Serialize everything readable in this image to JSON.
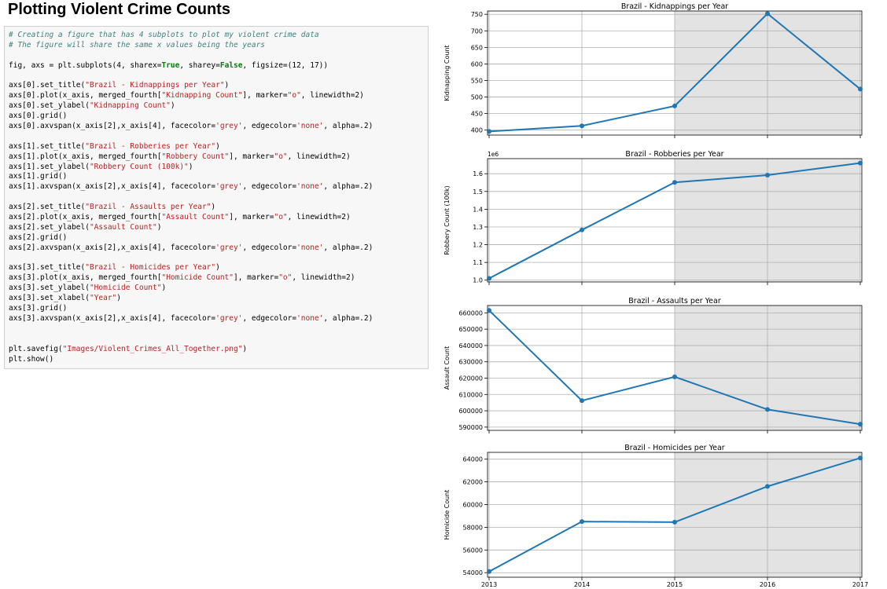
{
  "heading": "Plotting Violent Crime Counts",
  "code_lines": [
    [
      {
        "t": "# Creating a figure that has 4 subplots to plot my violent crime data",
        "c": "com"
      }
    ],
    [
      {
        "t": "# The figure will share the same x values being the years",
        "c": "com"
      }
    ],
    [],
    [
      {
        "t": "fig, axs = plt.subplots(4, sharex="
      },
      {
        "t": "True",
        "c": "kw"
      },
      {
        "t": ", sharey="
      },
      {
        "t": "False",
        "c": "kw"
      },
      {
        "t": ", figsize=(12, 17))"
      }
    ],
    [],
    [
      {
        "t": "axs[0].set_title("
      },
      {
        "t": "\"Brazil - Kidnappings per Year\"",
        "c": "str"
      },
      {
        "t": ")"
      }
    ],
    [
      {
        "t": "axs[0].plot(x_axis, merged_fourth["
      },
      {
        "t": "\"Kidnapping Count\"",
        "c": "str"
      },
      {
        "t": "], marker="
      },
      {
        "t": "\"o\"",
        "c": "str"
      },
      {
        "t": ", linewidth=2)"
      }
    ],
    [
      {
        "t": "axs[0].set_ylabel("
      },
      {
        "t": "\"Kidnapping Count\"",
        "c": "str"
      },
      {
        "t": ")"
      }
    ],
    [
      {
        "t": "axs[0].grid()"
      }
    ],
    [
      {
        "t": "axs[0].axvspan(x_axis[2],x_axis[4], facecolor="
      },
      {
        "t": "'grey'",
        "c": "str"
      },
      {
        "t": ", edgecolor="
      },
      {
        "t": "'none'",
        "c": "str"
      },
      {
        "t": ", alpha=.2)"
      }
    ],
    [],
    [
      {
        "t": "axs[1].set_title("
      },
      {
        "t": "\"Brazil - Robberies per Year\"",
        "c": "str"
      },
      {
        "t": ")"
      }
    ],
    [
      {
        "t": "axs[1].plot(x_axis, merged_fourth["
      },
      {
        "t": "\"Robbery Count\"",
        "c": "str"
      },
      {
        "t": "], marker="
      },
      {
        "t": "\"o\"",
        "c": "str"
      },
      {
        "t": ", linewidth=2)"
      }
    ],
    [
      {
        "t": "axs[1].set_ylabel("
      },
      {
        "t": "\"Robbery Count (100k)\"",
        "c": "str"
      },
      {
        "t": ")"
      }
    ],
    [
      {
        "t": "axs[1].grid()"
      }
    ],
    [
      {
        "t": "axs[1].axvspan(x_axis[2],x_axis[4], facecolor="
      },
      {
        "t": "'grey'",
        "c": "str"
      },
      {
        "t": ", edgecolor="
      },
      {
        "t": "'none'",
        "c": "str"
      },
      {
        "t": ", alpha=.2)"
      }
    ],
    [],
    [
      {
        "t": "axs[2].set_title("
      },
      {
        "t": "\"Brazil - Assaults per Year\"",
        "c": "str"
      },
      {
        "t": ")"
      }
    ],
    [
      {
        "t": "axs[2].plot(x_axis, merged_fourth["
      },
      {
        "t": "\"Assault Count\"",
        "c": "str"
      },
      {
        "t": "], marker="
      },
      {
        "t": "\"o\"",
        "c": "str"
      },
      {
        "t": ", linewidth=2)"
      }
    ],
    [
      {
        "t": "axs[2].set_ylabel("
      },
      {
        "t": "\"Assault Count\"",
        "c": "str"
      },
      {
        "t": ")"
      }
    ],
    [
      {
        "t": "axs[2].grid()"
      }
    ],
    [
      {
        "t": "axs[2].axvspan(x_axis[2],x_axis[4], facecolor="
      },
      {
        "t": "'grey'",
        "c": "str"
      },
      {
        "t": ", edgecolor="
      },
      {
        "t": "'none'",
        "c": "str"
      },
      {
        "t": ", alpha=.2)"
      }
    ],
    [],
    [
      {
        "t": "axs[3].set_title("
      },
      {
        "t": "\"Brazil - Homicides per Year\"",
        "c": "str"
      },
      {
        "t": ")"
      }
    ],
    [
      {
        "t": "axs[3].plot(x_axis, merged_fourth["
      },
      {
        "t": "\"Homicide Count\"",
        "c": "str"
      },
      {
        "t": "], marker="
      },
      {
        "t": "\"o\"",
        "c": "str"
      },
      {
        "t": ", linewidth=2)"
      }
    ],
    [
      {
        "t": "axs[3].set_ylabel("
      },
      {
        "t": "\"Homicide Count\"",
        "c": "str"
      },
      {
        "t": ")"
      }
    ],
    [
      {
        "t": "axs[3].set_xlabel("
      },
      {
        "t": "\"Year\"",
        "c": "str"
      },
      {
        "t": ")"
      }
    ],
    [
      {
        "t": "axs[3].grid()"
      }
    ],
    [
      {
        "t": "axs[3].axvspan(x_axis[2],x_axis[4], facecolor="
      },
      {
        "t": "'grey'",
        "c": "str"
      },
      {
        "t": ", edgecolor="
      },
      {
        "t": "'none'",
        "c": "str"
      },
      {
        "t": ", alpha=.2)"
      }
    ],
    [],
    [],
    [
      {
        "t": "plt.savefig("
      },
      {
        "t": "\"Images/Violent_Crimes_All_Together.png\"",
        "c": "str"
      },
      {
        "t": ")"
      }
    ],
    [
      {
        "t": "plt.show()"
      }
    ]
  ],
  "colors": {
    "line": "#1f77b4",
    "span": "#e3e3e3",
    "grid": "#b0b0b0",
    "comment": "#408080",
    "string": "#ba2121",
    "keyword": "#008000"
  },
  "chart_data": [
    {
      "type": "line",
      "title": "Brazil - Kidnappings per Year",
      "ylabel": "Kidnapping Count",
      "xlabel": "",
      "x": [
        2013,
        2014,
        2015,
        2016,
        2017
      ],
      "series": [
        {
          "values": [
            396,
            413,
            473,
            752,
            524
          ]
        }
      ],
      "ylim": [
        385,
        760
      ],
      "yticks": [
        400,
        450,
        500,
        550,
        600,
        650,
        700,
        750
      ],
      "ytick_labels": [
        "400",
        "450",
        "500",
        "550",
        "600",
        "650",
        "700",
        "750"
      ],
      "offset_text": "",
      "grid": true,
      "shaded_x": [
        2015,
        2017
      ]
    },
    {
      "type": "line",
      "title": "Brazil - Robberies per Year",
      "ylabel": "Robbery Count (100k)",
      "xlabel": "",
      "x": [
        2013,
        2014,
        2015,
        2016,
        2017
      ],
      "series": [
        {
          "values": [
            1010000,
            1283000,
            1551000,
            1592000,
            1660000
          ]
        }
      ],
      "ylim": [
        990000,
        1685000
      ],
      "yticks": [
        1000000,
        1100000,
        1200000,
        1300000,
        1400000,
        1500000,
        1600000
      ],
      "ytick_labels": [
        "1.0",
        "1.1",
        "1.2",
        "1.3",
        "1.4",
        "1.5",
        "1.6"
      ],
      "offset_text": "1e6",
      "grid": true,
      "shaded_x": [
        2015,
        2017
      ]
    },
    {
      "type": "line",
      "title": "Brazil - Assaults per Year",
      "ylabel": "Assault Count",
      "xlabel": "",
      "x": [
        2013,
        2014,
        2015,
        2016,
        2017
      ],
      "series": [
        {
          "values": [
            661500,
            606200,
            620800,
            600800,
            591800
          ]
        }
      ],
      "ylim": [
        588000,
        664500
      ],
      "yticks": [
        590000,
        600000,
        610000,
        620000,
        630000,
        640000,
        650000,
        660000
      ],
      "ytick_labels": [
        "590000",
        "600000",
        "610000",
        "620000",
        "630000",
        "640000",
        "650000",
        "660000"
      ],
      "offset_text": "",
      "grid": true,
      "shaded_x": [
        2015,
        2017
      ]
    },
    {
      "type": "line",
      "title": "Brazil - Homicides per Year",
      "ylabel": "Homicide Count",
      "xlabel": "",
      "x": [
        2013,
        2014,
        2015,
        2016,
        2017
      ],
      "series": [
        {
          "values": [
            54100,
            58500,
            58450,
            61600,
            64100
          ]
        }
      ],
      "ylim": [
        53600,
        64600
      ],
      "yticks": [
        54000,
        56000,
        58000,
        60000,
        62000,
        64000
      ],
      "ytick_labels": [
        "54000",
        "56000",
        "58000",
        "60000",
        "62000",
        "64000"
      ],
      "offset_text": "",
      "grid": true,
      "shaded_x": [
        2015,
        2017
      ]
    }
  ],
  "x_tick_labels": [
    "2013",
    "2014",
    "2015",
    "2016",
    "2017"
  ]
}
